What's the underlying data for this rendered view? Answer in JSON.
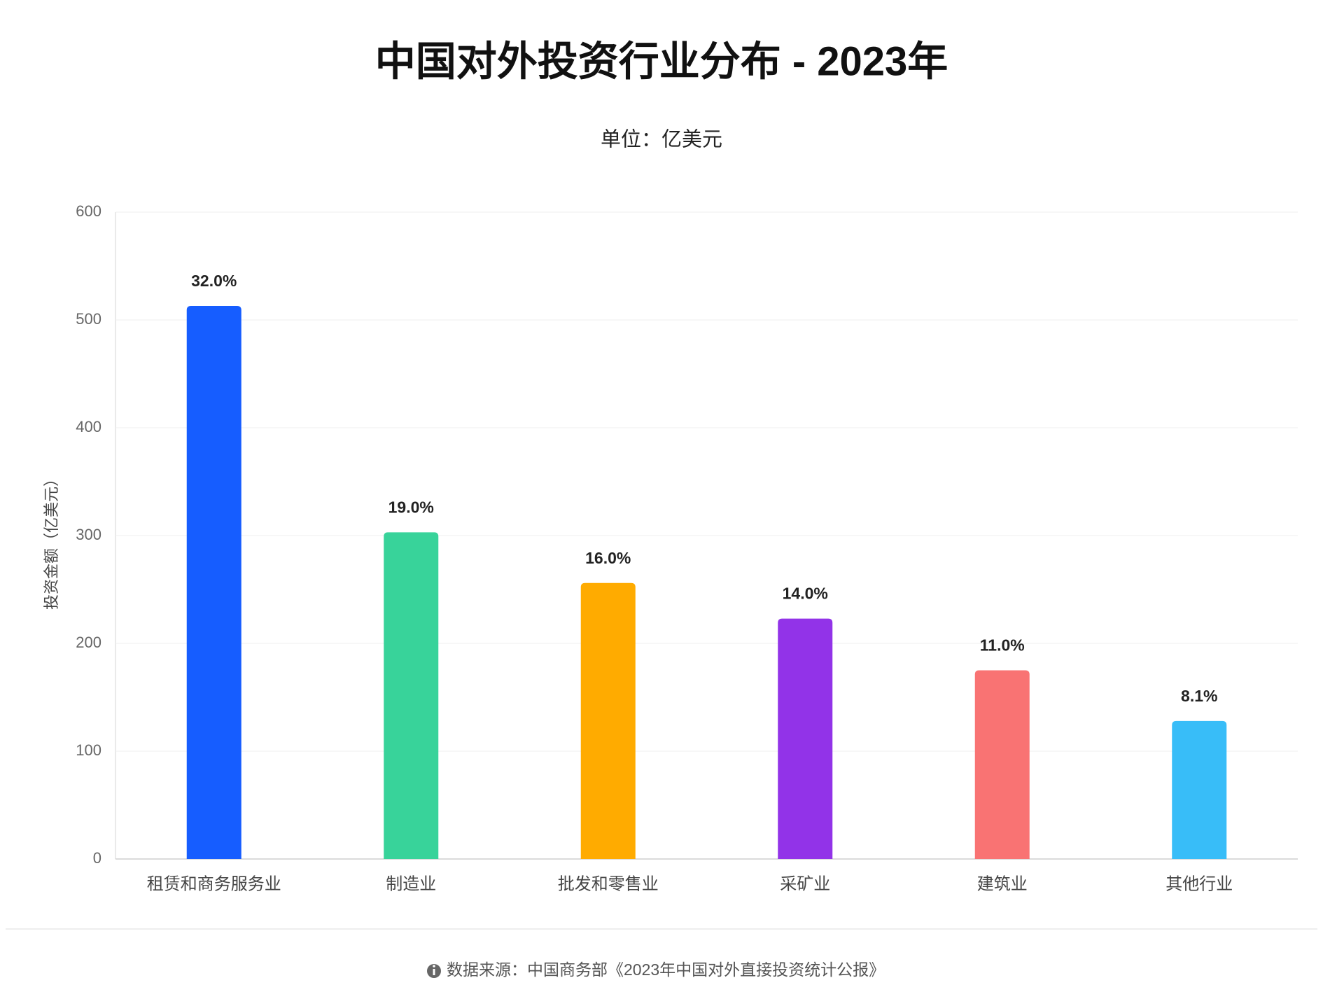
{
  "chart_data": {
    "type": "bar",
    "title": "中国对外投资行业分布 - 2023年",
    "subtitle": "单位：亿美元",
    "y_label": "投资金额（亿美元）",
    "categories": [
      "租赁和商务服务业",
      "制造业",
      "批发和零售业",
      "采矿业",
      "建筑业",
      "其他行业"
    ],
    "values": [
      513,
      303,
      256,
      223,
      175,
      128
    ],
    "colors": [
      "#165dff",
      "#38d39a",
      "#ffab00",
      "#9233e8",
      "#f97373",
      "#38bdf8"
    ],
    "shares": [
      32,
      19,
      16,
      14,
      11,
      8.1
    ],
    "share_labels": [
      "32.0%",
      "19.0%",
      "16.0%",
      "14.0%",
      "11.0%",
      "8.1%"
    ],
    "ylim": [
      0,
      600
    ],
    "yticks": [
      0,
      100,
      200,
      300,
      400,
      500,
      600
    ],
    "grid": true,
    "source": "数据来源：中国商务部《2023年中国对外直接投资统计公报》"
  }
}
